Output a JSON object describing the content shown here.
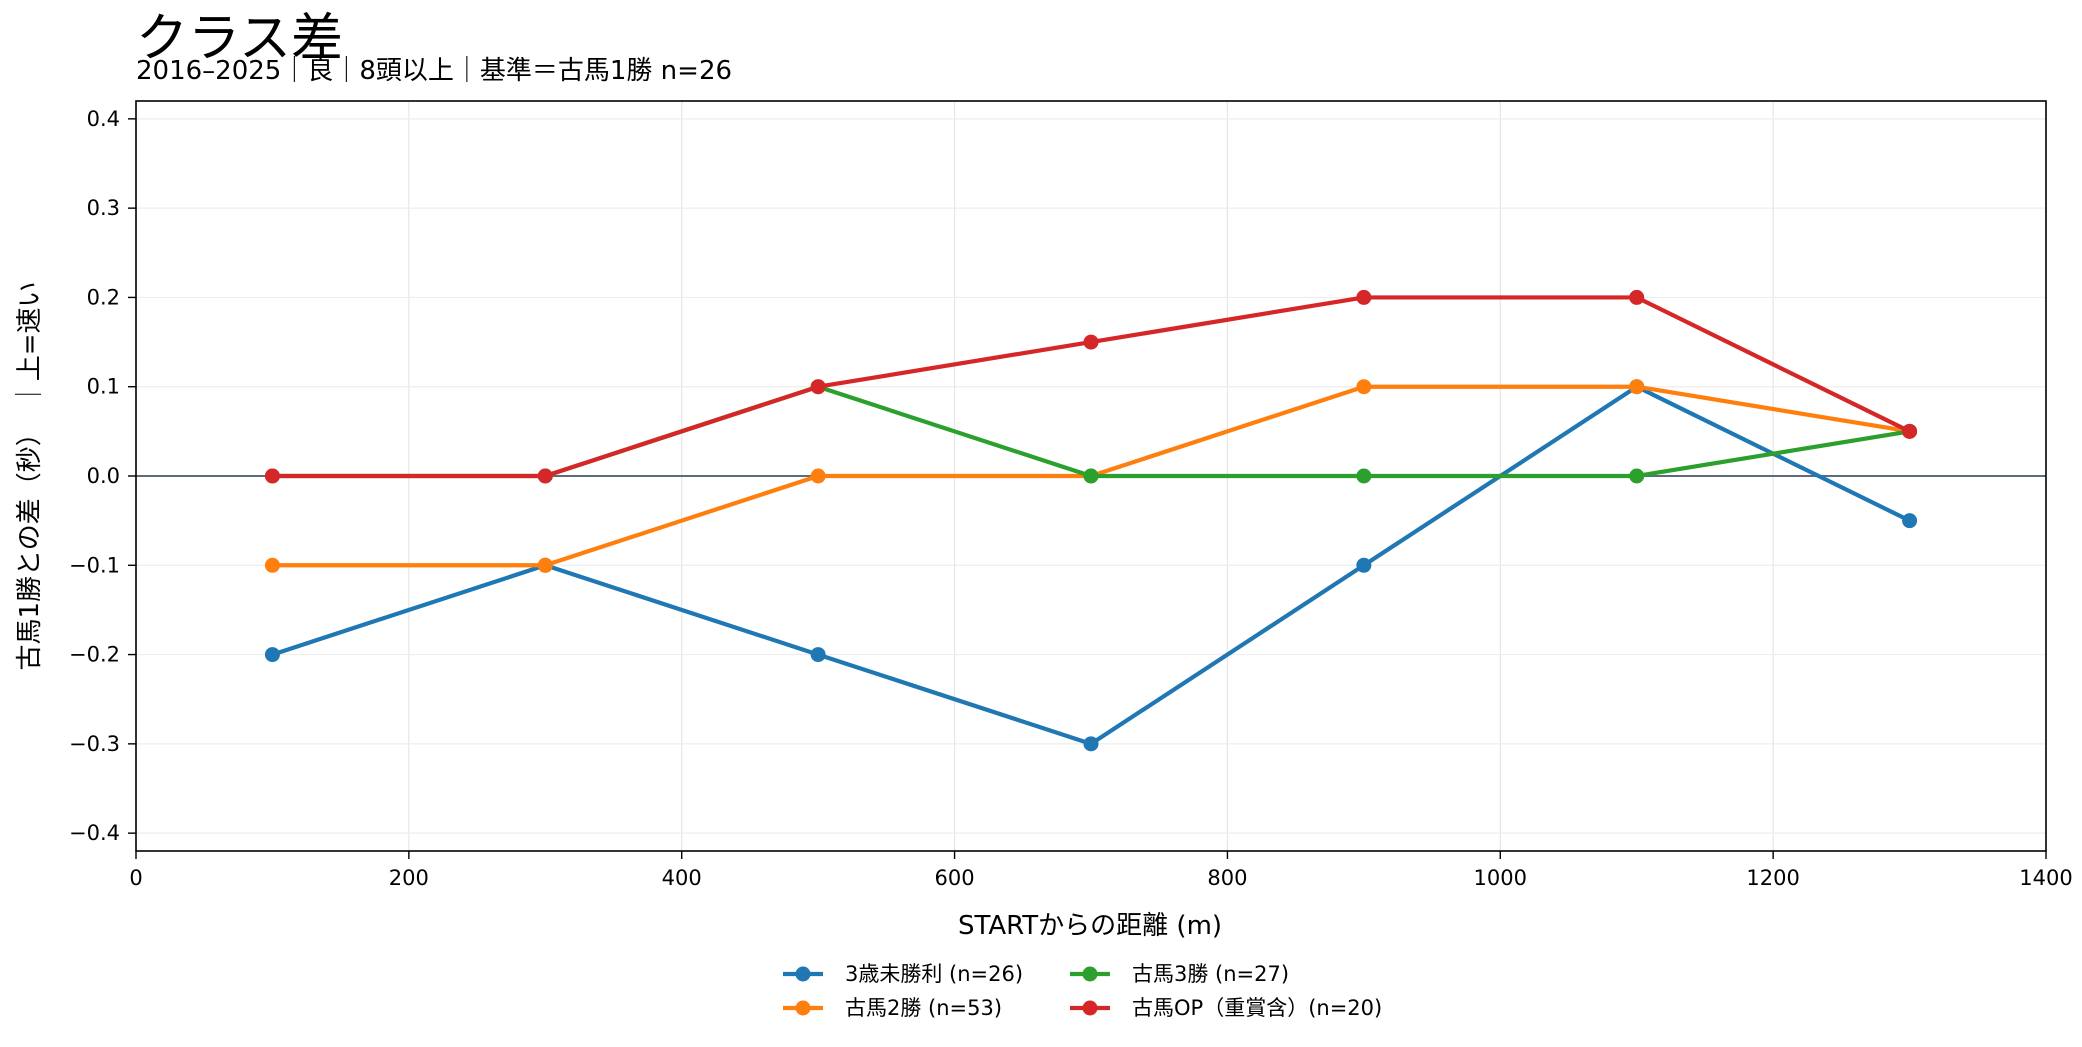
{
  "chart_data": {
    "type": "line",
    "title": "クラス差",
    "subtitle": "2016–2025｜良｜8頭以上｜基準＝古馬1勝 n=26",
    "xlabel": "STARTからの距離 (m)",
    "ylabel": "古馬1勝との差（秒）　｜上=速い",
    "xlim": [
      0,
      1400
    ],
    "ylim": [
      -0.42,
      0.42
    ],
    "xticks": [
      "0",
      "200",
      "400",
      "600",
      "800",
      "1000",
      "1200",
      "1400"
    ],
    "xtick_values": [
      0,
      200,
      400,
      600,
      800,
      1000,
      1200,
      1400
    ],
    "yticks": [
      "0.4",
      "0.3",
      "0.2",
      "0.1",
      "0.0",
      "−0.1",
      "−0.2",
      "−0.3",
      "−0.4"
    ],
    "ytick_values": [
      0.4,
      0.3,
      0.2,
      0.1,
      0.0,
      -0.1,
      -0.2,
      -0.3,
      -0.4
    ],
    "grid": true,
    "reference_line": 0.0,
    "legend_position": "bottom-center",
    "x": [
      100,
      300,
      500,
      700,
      900,
      1100,
      1300
    ],
    "series": [
      {
        "name": "3歳未勝利 (n=26)",
        "color": "#1f77b4",
        "values": [
          -0.2,
          -0.1,
          -0.2,
          -0.3,
          -0.1,
          0.1,
          -0.05
        ]
      },
      {
        "name": "古馬2勝 (n=53)",
        "color": "#ff7f0e",
        "values": [
          -0.1,
          -0.1,
          0.0,
          0.0,
          0.1,
          0.1,
          0.05
        ]
      },
      {
        "name": "古馬3勝 (n=27)",
        "color": "#2ca02c",
        "values": [
          0.0,
          0.0,
          0.1,
          0.0,
          0.0,
          0.0,
          0.05
        ]
      },
      {
        "name": "古馬OP（重賞含）(n=20)",
        "color": "#d62728",
        "values": [
          0.0,
          0.0,
          0.1,
          0.15,
          0.2,
          0.2,
          0.05
        ]
      }
    ]
  }
}
